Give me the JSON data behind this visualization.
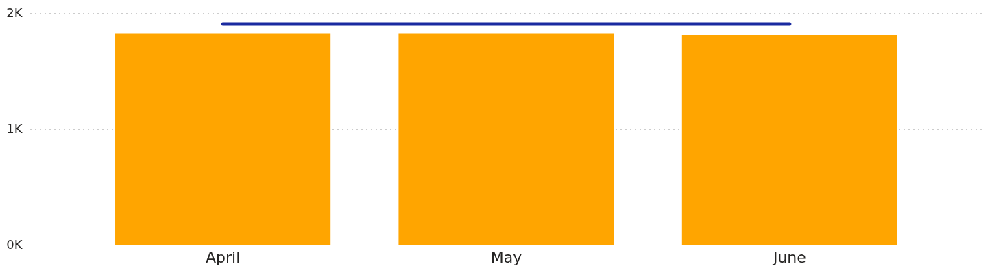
{
  "chart_data": {
    "type": "bar",
    "categories": [
      "April",
      "May",
      "June"
    ],
    "series": [
      {
        "color": "#ffa500",
        "values": [
          1825,
          1825,
          1810
        ]
      },
      {
        "type": "line",
        "color": "#1a2aa0",
        "values": [
          1905,
          1905,
          1905
        ]
      }
    ],
    "ylim": [
      0,
      2000
    ],
    "yticks": [
      {
        "value": 0,
        "label": "0K"
      },
      {
        "value": 1000,
        "label": "1K"
      },
      {
        "value": 2000,
        "label": "2K"
      }
    ],
    "grid": "y"
  }
}
